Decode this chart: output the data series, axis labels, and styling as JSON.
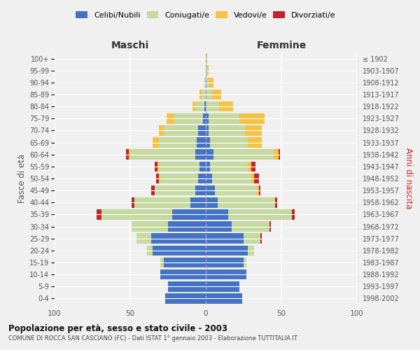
{
  "age_groups": [
    "0-4",
    "5-9",
    "10-14",
    "15-19",
    "20-24",
    "25-29",
    "30-34",
    "35-39",
    "40-44",
    "45-49",
    "50-54",
    "55-59",
    "60-64",
    "65-69",
    "70-74",
    "75-79",
    "80-84",
    "85-89",
    "90-94",
    "95-99",
    "100+"
  ],
  "years": [
    "1998-2002",
    "1993-1997",
    "1988-1992",
    "1983-1987",
    "1978-1982",
    "1973-1977",
    "1968-1972",
    "1963-1967",
    "1958-1962",
    "1953-1957",
    "1948-1952",
    "1943-1947",
    "1938-1942",
    "1933-1937",
    "1928-1932",
    "1923-1927",
    "1918-1922",
    "1913-1917",
    "1908-1912",
    "1903-1907",
    "≤ 1902"
  ],
  "colors": {
    "celibe": "#4472c4",
    "coniugato": "#c5d9a0",
    "vedovo": "#f5c242",
    "divorziato": "#c0252a"
  },
  "maschi": {
    "celibe": [
      27,
      25,
      30,
      28,
      35,
      36,
      25,
      22,
      10,
      7,
      5,
      4,
      7,
      6,
      5,
      2,
      1,
      0,
      0,
      0,
      0
    ],
    "coniugato": [
      0,
      0,
      0,
      2,
      4,
      10,
      24,
      47,
      37,
      27,
      25,
      27,
      43,
      25,
      23,
      19,
      6,
      3,
      1,
      0,
      0
    ],
    "vedovo": [
      0,
      0,
      0,
      0,
      0,
      0,
      0,
      0,
      0,
      0,
      1,
      1,
      1,
      4,
      3,
      5,
      2,
      1,
      0,
      0,
      0
    ],
    "divorziato": [
      0,
      0,
      0,
      0,
      0,
      0,
      0,
      3,
      2,
      2,
      2,
      2,
      2,
      0,
      0,
      0,
      0,
      0,
      0,
      0,
      0
    ]
  },
  "femmine": {
    "celibe": [
      24,
      22,
      27,
      25,
      28,
      25,
      17,
      15,
      8,
      6,
      4,
      3,
      5,
      3,
      2,
      2,
      0,
      0,
      0,
      0,
      0
    ],
    "coniugato": [
      0,
      0,
      0,
      2,
      4,
      11,
      25,
      42,
      38,
      28,
      26,
      25,
      40,
      25,
      24,
      20,
      9,
      4,
      2,
      1,
      0
    ],
    "vedovo": [
      0,
      0,
      0,
      0,
      0,
      0,
      0,
      0,
      0,
      1,
      2,
      2,
      3,
      9,
      11,
      17,
      9,
      6,
      3,
      1,
      1
    ],
    "divorziato": [
      0,
      0,
      0,
      0,
      0,
      1,
      1,
      2,
      1,
      1,
      3,
      3,
      1,
      0,
      0,
      0,
      0,
      0,
      0,
      0,
      0
    ]
  },
  "title": "Popolazione per età, sesso e stato civile - 2003",
  "subtitle": "COMUNE DI ROCCA SAN CASCIANO (FC) - Dati ISTAT 1° gennaio 2003 - Elaborazione TUTTITALIA.IT",
  "xlabel_left": "Maschi",
  "xlabel_right": "Femmine",
  "ylabel": "Fasce di età",
  "ylabel_right": "Anni di nascita",
  "xlim": 100,
  "bg_color": "#f0f0f0",
  "grid_color": "#ffffff"
}
